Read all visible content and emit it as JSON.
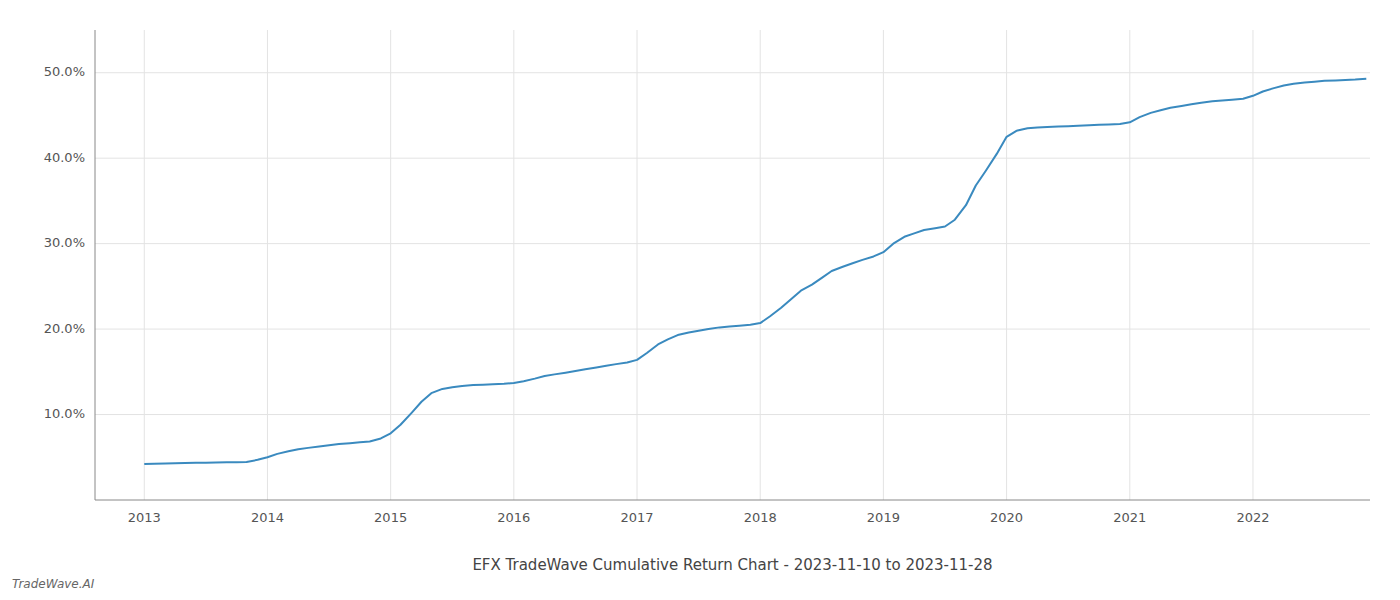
{
  "chart_data": {
    "type": "line",
    "title": "EFX TradeWave Cumulative Return Chart - 2023-11-10 to 2023-11-28",
    "annotations": [
      "TradeWave.AI"
    ],
    "color": "#3a8abf",
    "grid": true,
    "x": [
      2013.0,
      2013.08,
      2013.17,
      2013.25,
      2013.33,
      2013.42,
      2013.5,
      2013.58,
      2013.67,
      2013.75,
      2013.83,
      2013.92,
      2014.0,
      2014.08,
      2014.17,
      2014.25,
      2014.33,
      2014.42,
      2014.5,
      2014.58,
      2014.67,
      2014.75,
      2014.83,
      2014.92,
      2015.0,
      2015.08,
      2015.17,
      2015.25,
      2015.33,
      2015.42,
      2015.5,
      2015.58,
      2015.67,
      2015.75,
      2015.83,
      2015.92,
      2016.0,
      2016.08,
      2016.17,
      2016.25,
      2016.33,
      2016.42,
      2016.5,
      2016.58,
      2016.67,
      2016.75,
      2016.83,
      2016.92,
      2017.0,
      2017.08,
      2017.17,
      2017.25,
      2017.33,
      2017.42,
      2017.5,
      2017.58,
      2017.67,
      2017.75,
      2017.83,
      2017.92,
      2018.0,
      2018.08,
      2018.17,
      2018.25,
      2018.33,
      2018.42,
      2018.5,
      2018.58,
      2018.67,
      2018.75,
      2018.83,
      2018.92,
      2019.0,
      2019.08,
      2019.17,
      2019.25,
      2019.33,
      2019.42,
      2019.5,
      2019.58,
      2019.67,
      2019.75,
      2019.83,
      2019.92,
      2020.0,
      2020.08,
      2020.17,
      2020.25,
      2020.33,
      2020.42,
      2020.5,
      2020.58,
      2020.67,
      2020.75,
      2020.83,
      2020.92,
      2021.0,
      2021.08,
      2021.17,
      2021.25,
      2021.33,
      2021.42,
      2021.5,
      2021.58,
      2021.67,
      2021.75,
      2021.83,
      2021.92,
      2022.0,
      2022.08,
      2022.17,
      2022.25,
      2022.33,
      2022.42,
      2022.5,
      2022.58,
      2022.67,
      2022.75,
      2022.83,
      2022.92
    ],
    "values": [
      4.2,
      4.25,
      4.28,
      4.3,
      4.32,
      4.35,
      4.37,
      4.39,
      4.41,
      4.43,
      4.45,
      4.7,
      5.0,
      5.4,
      5.7,
      5.95,
      6.1,
      6.25,
      6.4,
      6.55,
      6.65,
      6.75,
      6.85,
      7.2,
      7.8,
      8.8,
      10.2,
      11.5,
      12.5,
      13.0,
      13.2,
      13.35,
      13.45,
      13.5,
      13.55,
      13.6,
      13.7,
      13.9,
      14.2,
      14.5,
      14.7,
      14.9,
      15.1,
      15.3,
      15.5,
      15.7,
      15.9,
      16.1,
      16.4,
      17.2,
      18.2,
      18.8,
      19.3,
      19.6,
      19.8,
      20.0,
      20.2,
      20.3,
      20.4,
      20.5,
      20.7,
      21.5,
      22.5,
      23.5,
      24.5,
      25.2,
      26.0,
      26.8,
      27.3,
      27.7,
      28.1,
      28.5,
      29.0,
      30.0,
      30.8,
      31.2,
      31.6,
      31.8,
      32.0,
      32.8,
      34.5,
      36.8,
      38.5,
      40.5,
      42.5,
      43.2,
      43.5,
      43.6,
      43.65,
      43.7,
      43.75,
      43.8,
      43.85,
      43.9,
      43.95,
      44.0,
      44.2,
      44.8,
      45.3,
      45.6,
      45.9,
      46.1,
      46.3,
      46.5,
      46.65,
      46.75,
      46.85,
      46.95,
      47.3,
      47.8,
      48.2,
      48.5,
      48.7,
      48.85,
      48.95,
      49.05,
      49.1,
      49.15,
      49.2,
      49.3
    ],
    "xlim": [
      2012.6,
      2022.95
    ],
    "ylim": [
      0,
      55
    ],
    "xticks": [
      2013,
      2014,
      2015,
      2016,
      2017,
      2018,
      2019,
      2020,
      2021,
      2022
    ],
    "yticks": [
      {
        "value": 10,
        "label": "10.0%"
      },
      {
        "value": 20,
        "label": "20.0%"
      },
      {
        "value": 30,
        "label": "30.0%"
      },
      {
        "value": 40,
        "label": "40.0%"
      },
      {
        "value": 50,
        "label": "50.0%"
      }
    ]
  }
}
